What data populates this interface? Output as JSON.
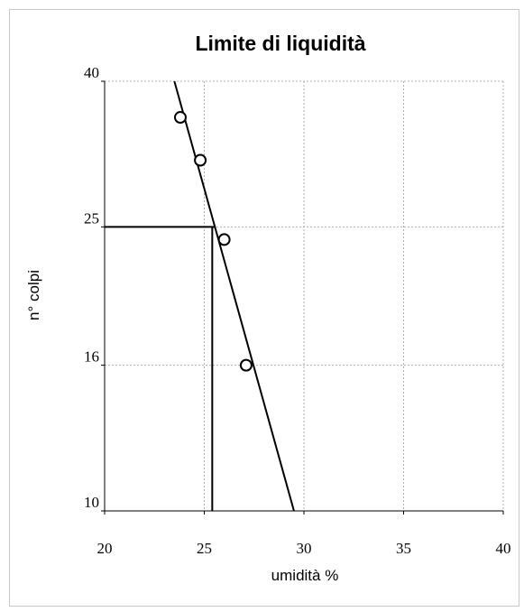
{
  "chart_data": {
    "type": "scatter",
    "title": "Limite di liquidità",
    "xlabel": "umidità %",
    "ylabel": "n° colpi",
    "x_ticks": [
      "20",
      "25",
      "30",
      "35",
      "40"
    ],
    "y_ticks": [
      "40",
      "25",
      "16",
      "10"
    ],
    "x_tick_values": [
      20,
      25,
      30,
      35,
      40
    ],
    "y_tick_values": [
      40,
      25,
      16,
      10
    ],
    "xlim": [
      20,
      40
    ],
    "ylim": [
      10,
      40
    ],
    "y_scale": "log",
    "grid": true,
    "series": [
      {
        "marker": "open-circle",
        "points": [
          {
            "x": 23.8,
            "y": 35.6
          },
          {
            "x": 24.8,
            "y": 31.0
          },
          {
            "x": 26.0,
            "y": 24.0
          },
          {
            "x": 27.1,
            "y": 16.0
          }
        ]
      }
    ],
    "trend_line": {
      "x1": 23.5,
      "y1": 40,
      "x2": 29.5,
      "y2": 10
    },
    "reference_lines": {
      "horizontal": {
        "y": 25,
        "x_end": 25.5
      },
      "vertical": {
        "x": 25.4,
        "y_top": 25
      }
    }
  }
}
